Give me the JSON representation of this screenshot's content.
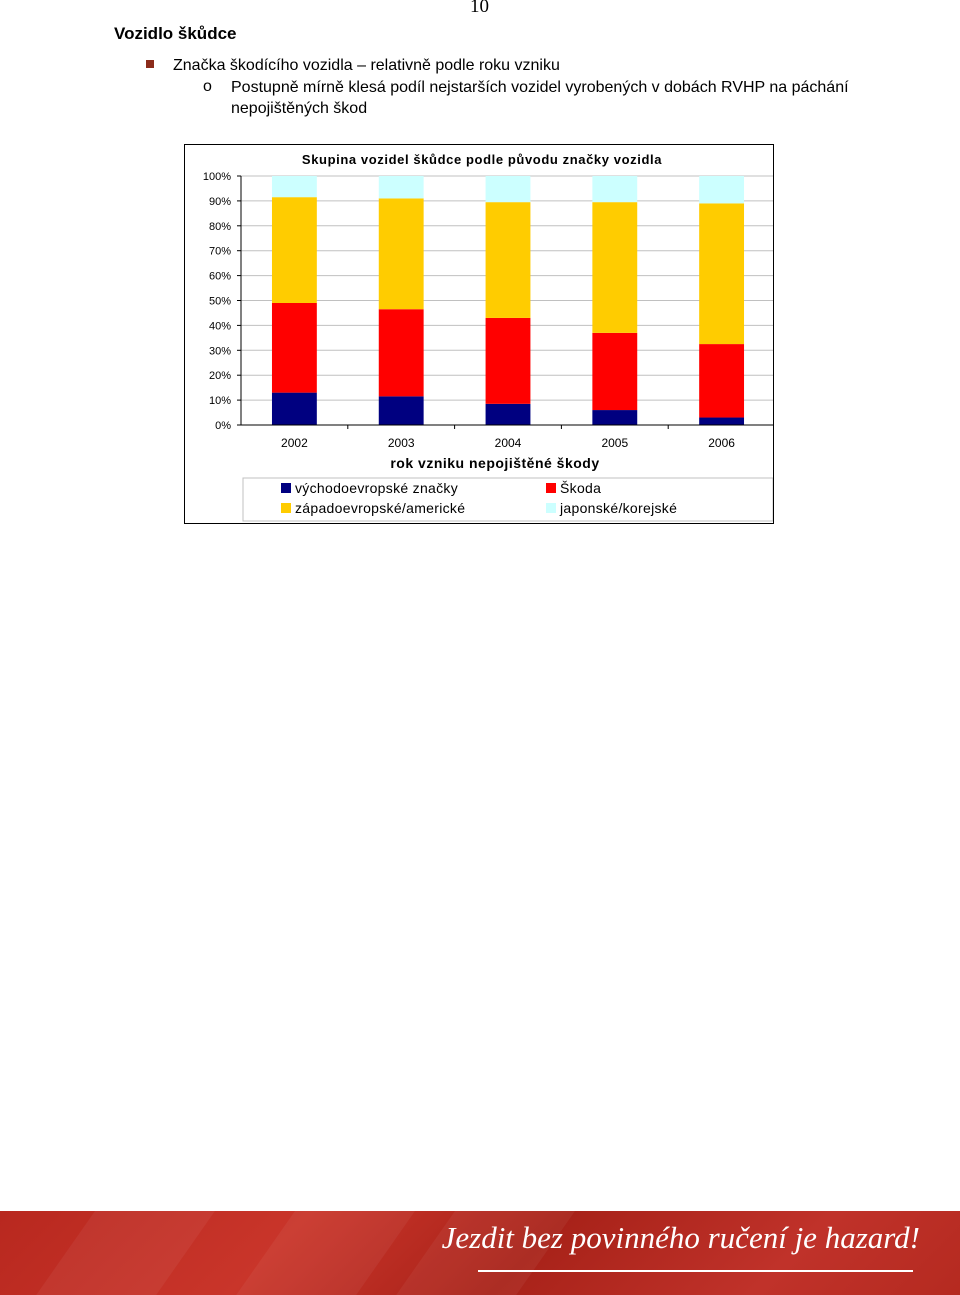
{
  "page": {
    "number": "10",
    "heading": "Vozidlo škůdce",
    "bullet": "Značka škodícího vozidla – relativně podle roku vzniku",
    "sub_bullet_mark": "o",
    "sub_bullet": "Postupně mírně klesá podíl nejstarších vozidel vyrobených v dobách RVHP na páchání nepojištěných škod",
    "footer_slogan": "Jezdit bez povinného ručení je hazard!"
  },
  "colors": {
    "east": "#000080",
    "skoda": "#ff0000",
    "west": "#ffcc00",
    "asian": "#ccffff",
    "footer": "#c0322a"
  },
  "chart_data": {
    "type": "bar",
    "stacked": true,
    "percent": true,
    "title": "Skupina vozidel škůdce podle původu značky vozidla",
    "xlabel": "rok vzniku nepojištěné škody",
    "ylabel": "",
    "ylim": [
      0,
      100
    ],
    "y_ticks": [
      "0%",
      "10%",
      "20%",
      "30%",
      "40%",
      "50%",
      "60%",
      "70%",
      "80%",
      "90%",
      "100%"
    ],
    "categories": [
      "2002",
      "2003",
      "2004",
      "2005",
      "2006"
    ],
    "series": [
      {
        "name": "východoevropské značky",
        "values": [
          13,
          11.5,
          8.5,
          6,
          3
        ]
      },
      {
        "name": "Škoda",
        "values": [
          36,
          35,
          34.5,
          31,
          29.5
        ]
      },
      {
        "name": "západoevropské/americké",
        "values": [
          42.5,
          44.5,
          46.5,
          52.5,
          56.5
        ]
      },
      {
        "name": "japonské/korejské",
        "values": [
          8.5,
          9,
          10.5,
          10.5,
          11
        ]
      }
    ],
    "grid": true,
    "legend": "bottom"
  }
}
